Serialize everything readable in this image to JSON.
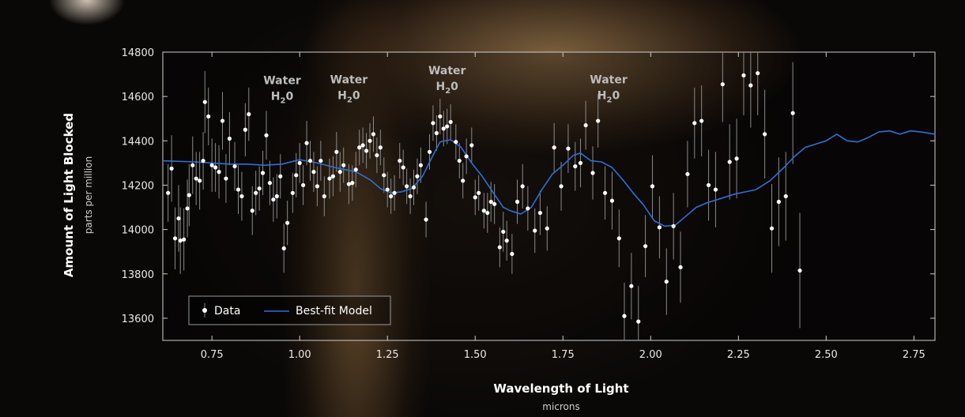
{
  "chart_data": {
    "type": "scatter",
    "title": "",
    "xlabel": "Wavelength of Light",
    "xlabel_sub": "microns",
    "ylabel": "Amount of Light Blocked",
    "ylabel_sub": "parts per million",
    "xlim": [
      0.61,
      2.81
    ],
    "ylim": [
      13500,
      14800
    ],
    "x_ticks": [
      0.75,
      1.0,
      1.25,
      1.5,
      1.75,
      2.0,
      2.25,
      2.5,
      2.75
    ],
    "x_tick_labels": [
      "0.75",
      "1.00",
      "1.25",
      "1.50",
      "1.75",
      "2.00",
      "2.25",
      "2.50",
      "2.75"
    ],
    "y_ticks": [
      13600,
      13800,
      14000,
      14200,
      14400,
      14600,
      14800
    ],
    "y_tick_labels": [
      "13600",
      "13800",
      "14000",
      "14200",
      "14400",
      "14600",
      "14800"
    ],
    "legend_position": "bottom-left",
    "legend": [
      {
        "label": "Data",
        "kind": "point-errorbar"
      },
      {
        "label": "Best-fit Model",
        "kind": "line"
      }
    ],
    "annotations": [
      {
        "line1": "Water",
        "line2": "H",
        "sub": "2",
        "line2_tail": "0",
        "x": 0.95,
        "y": 14655
      },
      {
        "line1": "Water",
        "line2": "H",
        "sub": "2",
        "line2_tail": "0",
        "x": 1.14,
        "y": 14660
      },
      {
        "line1": "Water",
        "line2": "H",
        "sub": "2",
        "line2_tail": "0",
        "x": 1.42,
        "y": 14700
      },
      {
        "line1": "Water",
        "line2": "H",
        "sub": "2",
        "line2_tail": "0",
        "x": 1.88,
        "y": 14660
      }
    ],
    "colors": {
      "data": "#ffffff",
      "errorbar": "#8a8a8a",
      "model": "#2f6fd6",
      "frame": "#cfcfcf"
    },
    "series": [
      {
        "name": "Data",
        "points": [
          [
            0.625,
            14165,
            130
          ],
          [
            0.635,
            14275,
            150
          ],
          [
            0.645,
            13960,
            140
          ],
          [
            0.655,
            14050,
            150
          ],
          [
            0.66,
            13950,
            150
          ],
          [
            0.67,
            13955,
            140
          ],
          [
            0.68,
            14095,
            130
          ],
          [
            0.685,
            14155,
            140
          ],
          [
            0.695,
            14290,
            130
          ],
          [
            0.705,
            14230,
            120
          ],
          [
            0.715,
            14220,
            130
          ],
          [
            0.725,
            14310,
            130
          ],
          [
            0.73,
            14575,
            140
          ],
          [
            0.74,
            14510,
            130
          ],
          [
            0.75,
            14290,
            120
          ],
          [
            0.76,
            14280,
            110
          ],
          [
            0.77,
            14260,
            120
          ],
          [
            0.78,
            14490,
            130
          ],
          [
            0.79,
            14230,
            110
          ],
          [
            0.8,
            14410,
            120
          ],
          [
            0.815,
            14285,
            110
          ],
          [
            0.825,
            14180,
            110
          ],
          [
            0.835,
            14150,
            110
          ],
          [
            0.845,
            14450,
            120
          ],
          [
            0.855,
            14520,
            120
          ],
          [
            0.865,
            14085,
            110
          ],
          [
            0.875,
            14165,
            100
          ],
          [
            0.885,
            14185,
            100
          ],
          [
            0.895,
            14255,
            100
          ],
          [
            0.905,
            14425,
            110
          ],
          [
            0.915,
            14210,
            100
          ],
          [
            0.925,
            14135,
            100
          ],
          [
            0.935,
            14150,
            100
          ],
          [
            0.945,
            14240,
            100
          ],
          [
            0.955,
            13915,
            110
          ],
          [
            0.965,
            14030,
            100
          ],
          [
            0.98,
            14165,
            90
          ],
          [
            0.99,
            14245,
            100
          ],
          [
            1.0,
            14300,
            90
          ],
          [
            1.01,
            14200,
            90
          ],
          [
            1.02,
            14390,
            100
          ],
          [
            1.03,
            14310,
            90
          ],
          [
            1.04,
            14260,
            90
          ],
          [
            1.05,
            14195,
            90
          ],
          [
            1.06,
            14310,
            90
          ],
          [
            1.07,
            14150,
            90
          ],
          [
            1.085,
            14230,
            90
          ],
          [
            1.095,
            14240,
            90
          ],
          [
            1.105,
            14350,
            90
          ],
          [
            1.115,
            14260,
            90
          ],
          [
            1.125,
            14290,
            80
          ],
          [
            1.14,
            14205,
            90
          ],
          [
            1.15,
            14210,
            80
          ],
          [
            1.16,
            14270,
            80
          ],
          [
            1.17,
            14370,
            80
          ],
          [
            1.18,
            14380,
            80
          ],
          [
            1.19,
            14355,
            80
          ],
          [
            1.2,
            14400,
            80
          ],
          [
            1.21,
            14430,
            80
          ],
          [
            1.22,
            14335,
            80
          ],
          [
            1.23,
            14370,
            80
          ],
          [
            1.24,
            14245,
            80
          ],
          [
            1.25,
            14180,
            80
          ],
          [
            1.26,
            14150,
            80
          ],
          [
            1.27,
            14165,
            80
          ],
          [
            1.285,
            14310,
            80
          ],
          [
            1.295,
            14280,
            80
          ],
          [
            1.305,
            14195,
            80
          ],
          [
            1.315,
            14150,
            80
          ],
          [
            1.325,
            14190,
            80
          ],
          [
            1.335,
            14240,
            80
          ],
          [
            1.345,
            14290,
            80
          ],
          [
            1.36,
            14045,
            80
          ],
          [
            1.37,
            14350,
            80
          ],
          [
            1.38,
            14480,
            80
          ],
          [
            1.39,
            14435,
            80
          ],
          [
            1.4,
            14510,
            80
          ],
          [
            1.41,
            14455,
            80
          ],
          [
            1.42,
            14465,
            80
          ],
          [
            1.43,
            14485,
            80
          ],
          [
            1.445,
            14395,
            80
          ],
          [
            1.455,
            14310,
            80
          ],
          [
            1.465,
            14220,
            80
          ],
          [
            1.475,
            14330,
            80
          ],
          [
            1.49,
            14380,
            80
          ],
          [
            1.5,
            14145,
            80
          ],
          [
            1.51,
            14165,
            80
          ],
          [
            1.525,
            14085,
            80
          ],
          [
            1.535,
            14075,
            90
          ],
          [
            1.545,
            14125,
            90
          ],
          [
            1.555,
            14115,
            90
          ],
          [
            1.57,
            13920,
            90
          ],
          [
            1.58,
            13990,
            90
          ],
          [
            1.59,
            13950,
            90
          ],
          [
            1.605,
            13890,
            90
          ],
          [
            1.62,
            14125,
            100
          ],
          [
            1.635,
            14195,
            100
          ],
          [
            1.65,
            14095,
            100
          ],
          [
            1.67,
            13995,
            100
          ],
          [
            1.685,
            14075,
            100
          ],
          [
            1.705,
            14005,
            100
          ],
          [
            1.725,
            14370,
            110
          ],
          [
            1.745,
            14195,
            110
          ],
          [
            1.765,
            14365,
            110
          ],
          [
            1.785,
            14285,
            110
          ],
          [
            1.8,
            14300,
            110
          ],
          [
            1.815,
            14470,
            110
          ],
          [
            1.835,
            14255,
            120
          ],
          [
            1.85,
            14490,
            120
          ],
          [
            1.87,
            14165,
            120
          ],
          [
            1.89,
            14130,
            130
          ],
          [
            1.91,
            13960,
            130
          ],
          [
            1.925,
            13610,
            150
          ],
          [
            1.945,
            13745,
            150
          ],
          [
            1.965,
            13585,
            160
          ],
          [
            1.985,
            13925,
            140
          ],
          [
            2.005,
            14195,
            140
          ],
          [
            2.025,
            14010,
            140
          ],
          [
            2.045,
            13765,
            150
          ],
          [
            2.065,
            14015,
            150
          ],
          [
            2.085,
            13830,
            160
          ],
          [
            2.105,
            14250,
            150
          ],
          [
            2.125,
            14480,
            160
          ],
          [
            2.145,
            14490,
            160
          ],
          [
            2.165,
            14200,
            160
          ],
          [
            2.185,
            14180,
            170
          ],
          [
            2.205,
            14655,
            170
          ],
          [
            2.225,
            14305,
            170
          ],
          [
            2.245,
            14320,
            180
          ],
          [
            2.265,
            14695,
            180
          ],
          [
            2.285,
            14650,
            190
          ],
          [
            2.305,
            14705,
            190
          ],
          [
            2.325,
            14430,
            200
          ],
          [
            2.345,
            14005,
            200
          ],
          [
            2.365,
            14125,
            200
          ],
          [
            2.385,
            14150,
            200
          ],
          [
            2.405,
            14525,
            230
          ],
          [
            2.425,
            13815,
            260
          ]
        ]
      },
      {
        "name": "Best-fit Model",
        "points": [
          [
            0.61,
            14310
          ],
          [
            0.7,
            14305
          ],
          [
            0.75,
            14300
          ],
          [
            0.8,
            14295
          ],
          [
            0.85,
            14295
          ],
          [
            0.9,
            14290
          ],
          [
            0.95,
            14295
          ],
          [
            1.0,
            14315
          ],
          [
            1.05,
            14300
          ],
          [
            1.1,
            14280
          ],
          [
            1.13,
            14270
          ],
          [
            1.16,
            14260
          ],
          [
            1.2,
            14225
          ],
          [
            1.23,
            14185
          ],
          [
            1.26,
            14165
          ],
          [
            1.29,
            14170
          ],
          [
            1.32,
            14185
          ],
          [
            1.35,
            14240
          ],
          [
            1.38,
            14335
          ],
          [
            1.4,
            14395
          ],
          [
            1.43,
            14405
          ],
          [
            1.46,
            14370
          ],
          [
            1.49,
            14300
          ],
          [
            1.52,
            14240
          ],
          [
            1.55,
            14170
          ],
          [
            1.58,
            14100
          ],
          [
            1.6,
            14085
          ],
          [
            1.63,
            14070
          ],
          [
            1.66,
            14100
          ],
          [
            1.69,
            14180
          ],
          [
            1.72,
            14250
          ],
          [
            1.75,
            14290
          ],
          [
            1.78,
            14335
          ],
          [
            1.8,
            14345
          ],
          [
            1.83,
            14310
          ],
          [
            1.86,
            14305
          ],
          [
            1.89,
            14280
          ],
          [
            1.92,
            14225
          ],
          [
            1.95,
            14165
          ],
          [
            1.98,
            14110
          ],
          [
            2.01,
            14040
          ],
          [
            2.04,
            14015
          ],
          [
            2.07,
            14020
          ],
          [
            2.1,
            14060
          ],
          [
            2.13,
            14100
          ],
          [
            2.16,
            14120
          ],
          [
            2.2,
            14140
          ],
          [
            2.24,
            14160
          ],
          [
            2.27,
            14170
          ],
          [
            2.3,
            14180
          ],
          [
            2.34,
            14220
          ],
          [
            2.38,
            14280
          ],
          [
            2.41,
            14330
          ],
          [
            2.44,
            14370
          ],
          [
            2.47,
            14385
          ],
          [
            2.5,
            14400
          ],
          [
            2.53,
            14430
          ],
          [
            2.56,
            14400
          ],
          [
            2.59,
            14395
          ],
          [
            2.62,
            14415
          ],
          [
            2.65,
            14440
          ],
          [
            2.68,
            14445
          ],
          [
            2.71,
            14430
          ],
          [
            2.74,
            14445
          ],
          [
            2.77,
            14440
          ],
          [
            2.81,
            14430
          ]
        ]
      }
    ]
  }
}
